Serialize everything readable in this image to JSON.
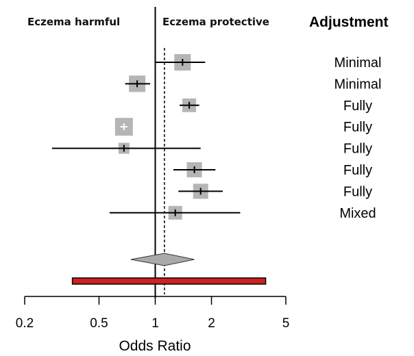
{
  "chart_data": {
    "type": "forest",
    "xlabel": "Odds Ratio",
    "x_scale": "log",
    "xlim": [
      0.2,
      5
    ],
    "x_ticks": [
      {
        "value": 0.2,
        "label": "0.2"
      },
      {
        "value": 0.5,
        "label": "0.5"
      },
      {
        "value": 1,
        "label": "1"
      },
      {
        "value": 2,
        "label": "2"
      },
      {
        "value": 5,
        "label": "5"
      }
    ],
    "header_left": "Eczema harmful",
    "header_right": "Eczema protective",
    "header_column": "Adjustment",
    "reference_line": 1,
    "pooled_estimate_line": 1.12,
    "studies": [
      {
        "or": 1.4,
        "lower": 1.0,
        "upper": 1.85,
        "adjustment": "Minimal"
      },
      {
        "or": 0.8,
        "lower": 0.69,
        "upper": 0.94,
        "adjustment": "Minimal"
      },
      {
        "or": 1.52,
        "lower": 1.35,
        "upper": 1.72,
        "adjustment": "Fully"
      },
      {
        "or": 0.68,
        "lower": 0.65,
        "upper": 0.71,
        "adjustment": "Fully"
      },
      {
        "or": 0.68,
        "lower": 0.28,
        "upper": 1.75,
        "adjustment": "Fully"
      },
      {
        "or": 1.62,
        "lower": 1.25,
        "upper": 2.1,
        "adjustment": "Fully"
      },
      {
        "or": 1.75,
        "lower": 1.33,
        "upper": 2.3,
        "adjustment": "Fully"
      },
      {
        "or": 1.28,
        "lower": 0.57,
        "upper": 2.85,
        "adjustment": "Mixed"
      }
    ],
    "summary": {
      "or": 1.12,
      "lower": 0.74,
      "upper": 1.62
    },
    "prediction_interval": {
      "lower": 0.36,
      "upper": 3.9
    }
  },
  "colors": {
    "box": "#b5b5b5",
    "line": "#000000",
    "inner_white": "#ffffff",
    "diamond": "#a9a9a9",
    "prediction_bar": "#cc2222"
  }
}
